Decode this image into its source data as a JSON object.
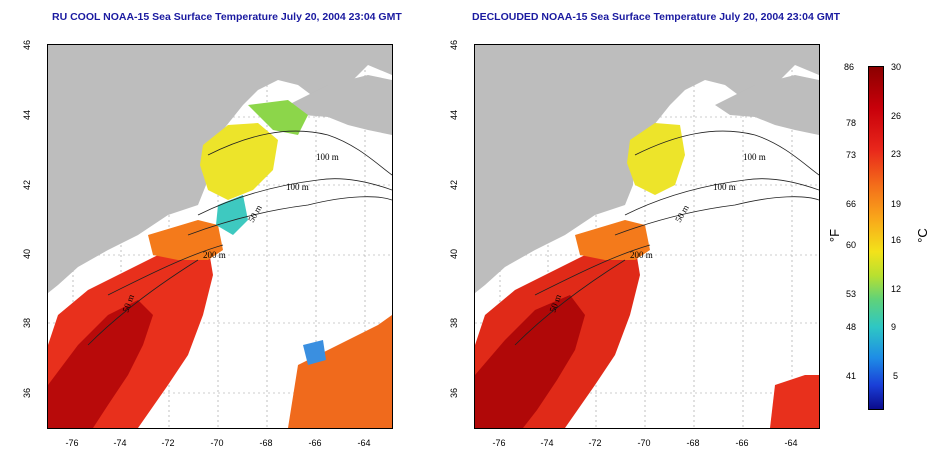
{
  "titles": {
    "left": "RU COOL NOAA-15 Sea Surface Temperature July 20, 2004 23:04 GMT",
    "right": "DECLOUDED NOAA-15 Sea Surface Temperature July 20, 2004 23:04 GMT"
  },
  "axes": {
    "x_ticks": [
      "-76",
      "-74",
      "-72",
      "-70",
      "-68",
      "-66",
      "-64"
    ],
    "y_ticks": [
      "46",
      "44",
      "42",
      "40",
      "38",
      "36"
    ]
  },
  "contour_labels": [
    "100 m",
    "100 m",
    "50 m",
    "200 m",
    "50 m"
  ],
  "colorbar": {
    "fahrenheit_ticks": [
      "86",
      "78",
      "73",
      "66",
      "60",
      "53",
      "48",
      "41"
    ],
    "celsius_ticks": [
      "30",
      "26",
      "23",
      "19",
      "16",
      "12",
      "9",
      "5"
    ],
    "unit_f": "°F",
    "unit_c": "°C"
  },
  "colors": {
    "land": "#bdbdbd",
    "title": "#1a1aa0",
    "warm": "#e8261b",
    "cool": "#f3e21a"
  }
}
